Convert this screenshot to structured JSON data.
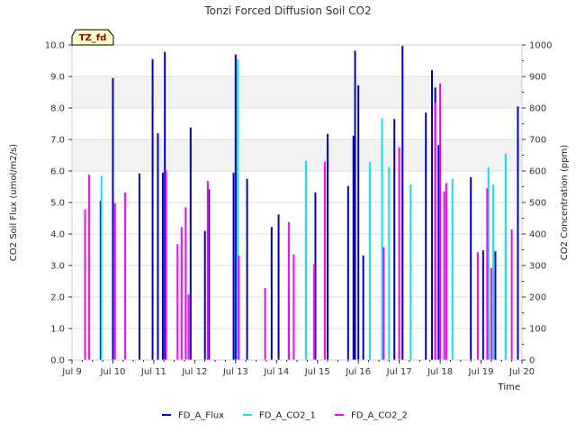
{
  "chart_data": {
    "type": "bar",
    "title": "Tonzi Forced Diffusion Soil CO2",
    "site_tag": "TZ_fd",
    "xlabel": "Time",
    "ylabel": "CO2 Soil Flux (umol/m2/s)",
    "ylabel_right": "CO2 Concentration (ppm)",
    "x_unit": "day of July",
    "xlim": [
      9.0,
      20.0
    ],
    "ylim": [
      0,
      10
    ],
    "ylim_right": [
      0,
      1000
    ],
    "x_ticks": [
      {
        "value": 9,
        "label": "Jul 9"
      },
      {
        "value": 10,
        "label": "Jul 10"
      },
      {
        "value": 11,
        "label": "Jul 11"
      },
      {
        "value": 12,
        "label": "Jul 12"
      },
      {
        "value": 13,
        "label": "Jul 13"
      },
      {
        "value": 14,
        "label": "Jul 14"
      },
      {
        "value": 15,
        "label": "Jul 15"
      },
      {
        "value": 16,
        "label": "Jul 16"
      },
      {
        "value": 17,
        "label": "Jul 17"
      },
      {
        "value": 18,
        "label": "Jul 18"
      },
      {
        "value": 19,
        "label": "Jul 19"
      },
      {
        "value": 20,
        "label": "Jul 20"
      }
    ],
    "y_ticks": [
      {
        "value": 0,
        "label": "0.0"
      },
      {
        "value": 1,
        "label": "1.0"
      },
      {
        "value": 2,
        "label": "2.0"
      },
      {
        "value": 3,
        "label": "3.0"
      },
      {
        "value": 4,
        "label": "4.0"
      },
      {
        "value": 5,
        "label": "5.0"
      },
      {
        "value": 6,
        "label": "6.0"
      },
      {
        "value": 7,
        "label": "7.0"
      },
      {
        "value": 8,
        "label": "8.0"
      },
      {
        "value": 9,
        "label": "9.0"
      },
      {
        "value": 10,
        "label": "10.0"
      }
    ],
    "y_ticks_right": [
      {
        "value": 0,
        "label": "0"
      },
      {
        "value": 100,
        "label": "100"
      },
      {
        "value": 200,
        "label": "200"
      },
      {
        "value": 300,
        "label": "300"
      },
      {
        "value": 400,
        "label": "400"
      },
      {
        "value": 500,
        "label": "500"
      },
      {
        "value": 600,
        "label": "600"
      },
      {
        "value": 700,
        "label": "700"
      },
      {
        "value": 800,
        "label": "800"
      },
      {
        "value": 900,
        "label": "900"
      },
      {
        "value": 1000,
        "label": "1000"
      }
    ],
    "bands": [
      [
        6,
        7
      ],
      [
        8,
        9
      ],
      [
        10,
        10
      ]
    ],
    "series": [
      {
        "name": "FD_A_Flux",
        "axis": "left",
        "color": "#0000cd",
        "points": [
          [
            9.7,
            5.05
          ],
          [
            10.0,
            8.95
          ],
          [
            10.65,
            5.92
          ],
          [
            10.97,
            9.55
          ],
          [
            11.1,
            7.2
          ],
          [
            11.22,
            5.95
          ],
          [
            11.27,
            9.78
          ],
          [
            11.9,
            7.38
          ],
          [
            12.25,
            4.1
          ],
          [
            12.35,
            5.42
          ],
          [
            12.95,
            5.95
          ],
          [
            13.0,
            9.7
          ],
          [
            13.28,
            5.75
          ],
          [
            13.88,
            4.22
          ],
          [
            14.05,
            4.62
          ],
          [
            14.3,
            2.28
          ],
          [
            14.95,
            5.32
          ],
          [
            15.25,
            7.18
          ],
          [
            15.75,
            5.52
          ],
          [
            15.88,
            7.12
          ],
          [
            15.92,
            9.82
          ],
          [
            16.0,
            8.72
          ],
          [
            16.12,
            3.32
          ],
          [
            16.88,
            7.65
          ],
          [
            17.08,
            9.97
          ],
          [
            17.65,
            7.85
          ],
          [
            17.8,
            9.2
          ],
          [
            17.88,
            8.65
          ],
          [
            17.96,
            6.82
          ],
          [
            18.75,
            5.8
          ],
          [
            19.05,
            3.48
          ],
          [
            19.18,
            1.3
          ],
          [
            19.35,
            3.45
          ],
          [
            19.9,
            8.05
          ]
        ]
      },
      {
        "name": "FD_A_CO2_1",
        "axis": "right",
        "color": "#00e5ff",
        "points": [
          [
            9.72,
            585
          ],
          [
            13.05,
            955
          ],
          [
            14.72,
            632
          ],
          [
            16.28,
            628
          ],
          [
            16.58,
            768
          ],
          [
            16.75,
            613
          ],
          [
            17.28,
            558
          ],
          [
            18.3,
            575
          ],
          [
            19.18,
            612
          ],
          [
            19.3,
            558
          ],
          [
            19.6,
            655
          ]
        ]
      },
      {
        "name": "FD_A_CO2_2",
        "axis": "right",
        "color": "#ff00ff",
        "points": [
          [
            9.32,
            478
          ],
          [
            9.42,
            588
          ],
          [
            10.05,
            498
          ],
          [
            10.3,
            532
          ],
          [
            11.3,
            602
          ],
          [
            11.58,
            368
          ],
          [
            11.68,
            422
          ],
          [
            11.78,
            485
          ],
          [
            11.85,
            208
          ],
          [
            12.32,
            568
          ],
          [
            13.08,
            332
          ],
          [
            13.72,
            228
          ],
          [
            14.3,
            438
          ],
          [
            14.42,
            335
          ],
          [
            14.92,
            305
          ],
          [
            15.18,
            630
          ],
          [
            16.62,
            358
          ],
          [
            17.0,
            675
          ],
          [
            17.88,
            818
          ],
          [
            18.0,
            878
          ],
          [
            18.1,
            535
          ],
          [
            18.15,
            562
          ],
          [
            18.92,
            342
          ],
          [
            19.15,
            545
          ],
          [
            19.25,
            292
          ],
          [
            19.75,
            415
          ]
        ]
      }
    ],
    "legend_position": "bottom-center"
  }
}
